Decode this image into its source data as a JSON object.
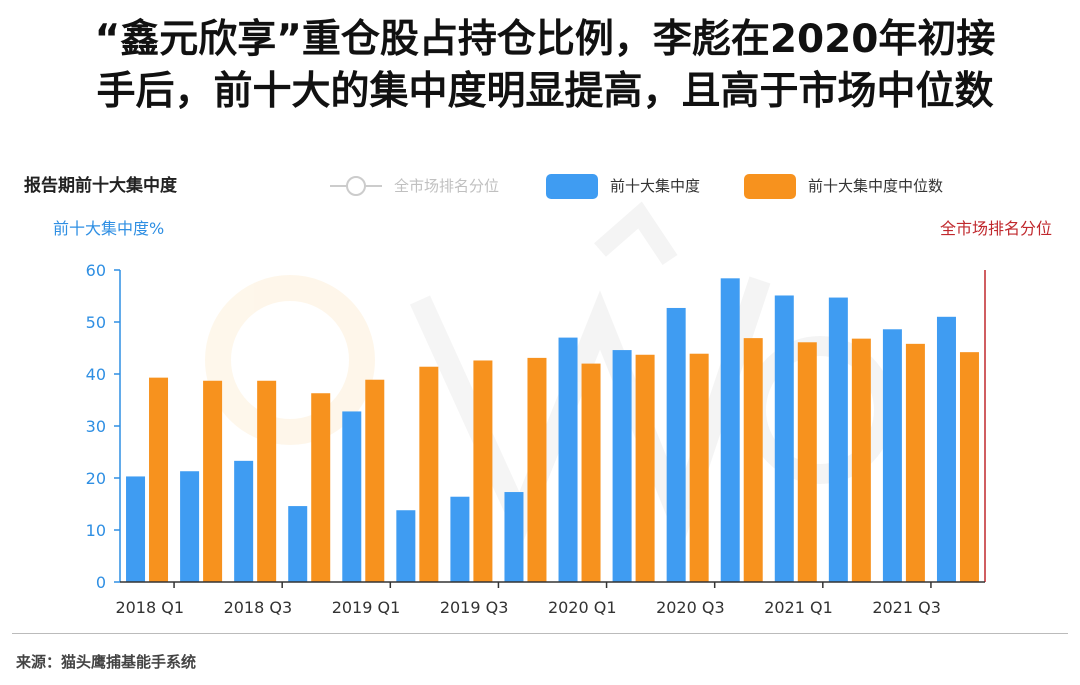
{
  "headline": {
    "line1": "“鑫元欣享”重仓股占持仓比例，李彪在2020年初接",
    "line2": "手后，前十大的集中度明显提高，且高于市场中位数"
  },
  "source": "来源：猫头鹰捕基能手系统",
  "chart_data": {
    "type": "bar",
    "title": "报告期前十大集中度",
    "ylabel": "前十大集中度%",
    "ylabel_right": "全市场排名分位",
    "ylim": [
      0,
      60
    ],
    "yticks": [
      "0",
      "10",
      "20",
      "30",
      "40",
      "50",
      "60"
    ],
    "xtick_labels": [
      "2018 Q1",
      "2018 Q3",
      "2019 Q1",
      "2019 Q3",
      "2020 Q1",
      "2020 Q3",
      "2021 Q1",
      "2021 Q3"
    ],
    "categories": [
      "2018 Q1",
      "2018 Q2",
      "2018 Q3",
      "2018 Q4",
      "2019 Q1",
      "2019 Q2",
      "2019 Q3",
      "2019 Q4",
      "2020 Q1",
      "2020 Q2",
      "2020 Q3",
      "2020 Q4",
      "2021 Q1",
      "2021 Q2",
      "2021 Q3",
      "2021 Q4"
    ],
    "legend": [
      {
        "name": "全市场排名分位",
        "color": "#cccccc",
        "marker": "line-circle"
      },
      {
        "name": "前十大集中度",
        "color": "#3f9cf2",
        "marker": "box"
      },
      {
        "name": "前十大集中度中位数",
        "color": "#f7921e",
        "marker": "box"
      }
    ],
    "series": [
      {
        "name": "前十大集中度",
        "color": "#3f9cf2",
        "values": [
          20.3,
          21.3,
          23.3,
          14.6,
          32.8,
          13.8,
          16.4,
          17.3,
          47.0,
          44.6,
          52.7,
          58.4,
          55.1,
          54.7,
          48.6,
          51.0
        ]
      },
      {
        "name": "前十大集中度中位数",
        "color": "#f7921e",
        "values": [
          39.3,
          38.7,
          38.7,
          36.3,
          38.9,
          41.4,
          42.6,
          43.1,
          42.0,
          43.7,
          43.9,
          46.9,
          46.1,
          46.8,
          45.8,
          44.2
        ]
      }
    ],
    "grid": false,
    "legend_position": "top-center"
  }
}
